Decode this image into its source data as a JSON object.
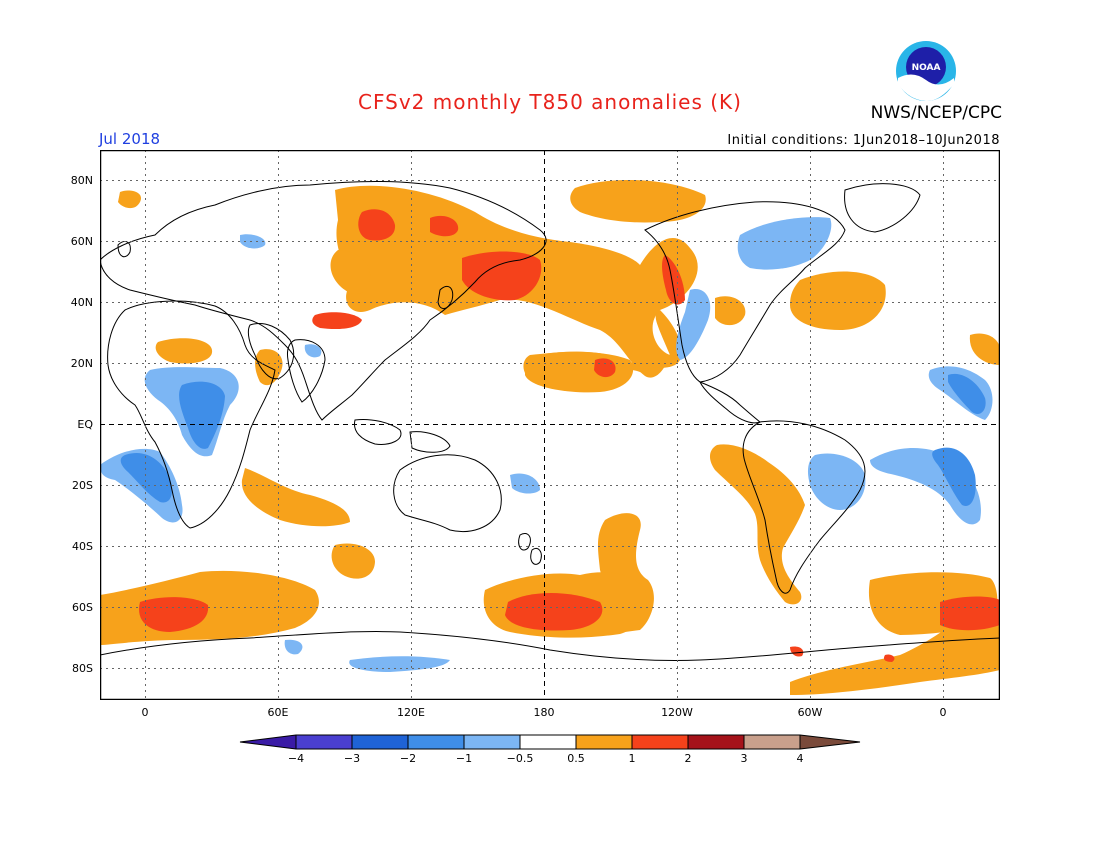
{
  "title": "CFSv2 monthly T850 anomalies (K)",
  "agency": "NWS/NCEP/CPC",
  "logo_text": "NOAA",
  "valid_month": "Jul 2018",
  "initial_conditions": "Initial conditions: 1Jun2018–10Jun2018",
  "lat_labels": [
    "80N",
    "60N",
    "40N",
    "20N",
    "EQ",
    "20S",
    "40S",
    "60S",
    "80S"
  ],
  "lon_labels": [
    "0",
    "60E",
    "120E",
    "180",
    "120W",
    "60W",
    "0"
  ],
  "colorbar": {
    "labels": [
      "−4",
      "−3",
      "−2",
      "−1",
      "−0.5",
      "0.5",
      "1",
      "2",
      "3",
      "4"
    ],
    "colors": [
      "#3a1ba6",
      "#4a3fd0",
      "#1f63d6",
      "#3f8ee8",
      "#7cb6f4",
      "#ffffff",
      "#f7a21b",
      "#f5421b",
      "#a5121a",
      "#c9a08c",
      "#7a4a3a"
    ]
  },
  "colors": {
    "warm_light": "#f7a21b",
    "warm_strong": "#f5421b",
    "cool_light": "#7cb6f4",
    "cool_mid": "#3f8ee8",
    "title_red": "#e8231c",
    "label_blue": "#1f3fe0"
  }
}
